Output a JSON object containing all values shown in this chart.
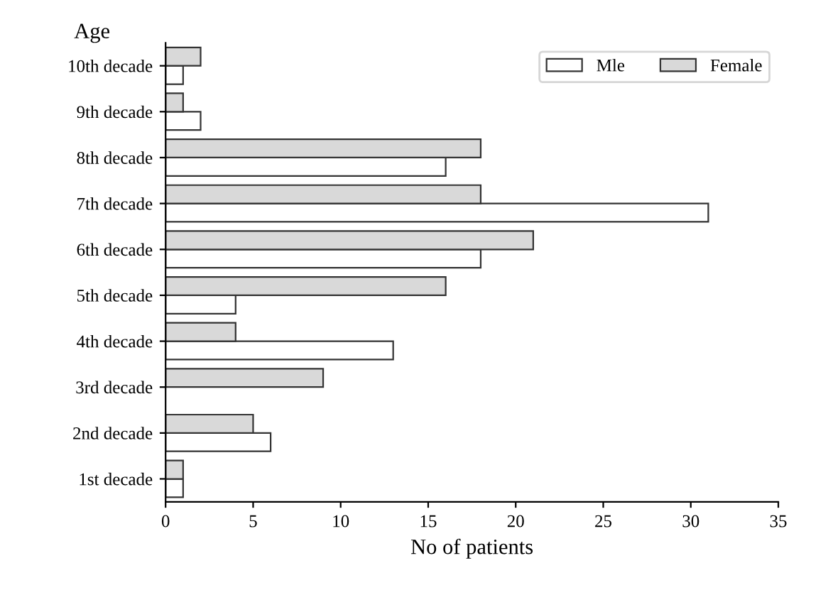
{
  "chart_data": {
    "type": "bar",
    "orientation": "horizontal",
    "xlabel": "No of patients",
    "ylabel": "Age",
    "categories": [
      "10th decade",
      "9th decade",
      "8th decade",
      "7th decade",
      "6th decade",
      "5th decade",
      "4th decade",
      "3rd decade",
      "2nd decade",
      "1st decade"
    ],
    "series": [
      {
        "name": "Mle",
        "color": "#ffffff",
        "values": [
          1,
          2,
          16,
          31,
          18,
          4,
          13,
          null,
          6,
          1
        ]
      },
      {
        "name": "Female",
        "color": "#d9d9d9",
        "values": [
          2,
          1,
          18,
          18,
          21,
          16,
          4,
          9,
          5,
          1
        ]
      }
    ],
    "xlim": [
      0,
      35
    ],
    "xticks": [
      0,
      5,
      10,
      15,
      20,
      25,
      30,
      35
    ],
    "grid": false,
    "legend": "top right"
  }
}
